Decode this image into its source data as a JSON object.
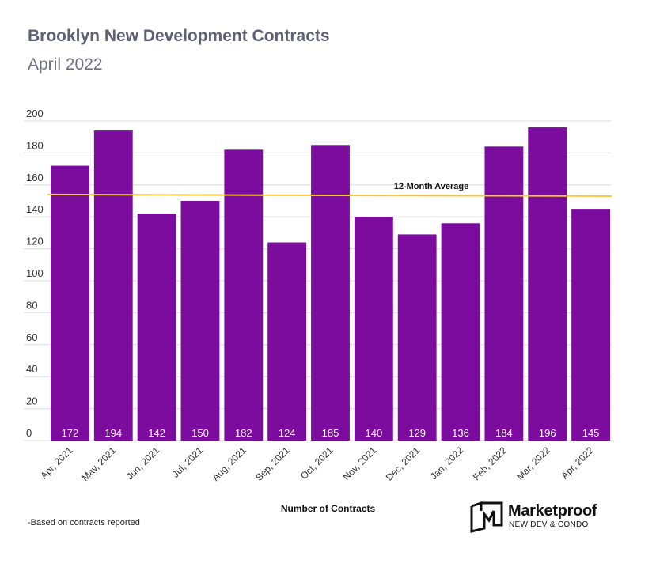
{
  "title": "Brooklyn New Development Contracts",
  "subtitle": "April 2022",
  "footnote": "-Based on contracts reported",
  "brand": {
    "name": "Marketproof",
    "tagline": "NEW DEV & CONDO",
    "logo_icon": "marketproof-logo-icon"
  },
  "chart_data": {
    "type": "bar",
    "title": "Brooklyn New Development Contracts",
    "subtitle": "April 2022",
    "xlabel": "Number of Contracts",
    "ylabel": "",
    "ylim": [
      0,
      200
    ],
    "yticks": [
      0,
      20,
      40,
      60,
      80,
      100,
      120,
      140,
      160,
      180,
      200
    ],
    "grid": true,
    "categories": [
      "Apr, 2021",
      "May, 2021",
      "Jun, 2021",
      "Jul, 2021",
      "Aug, 2021",
      "Sep, 2021",
      "Oct, 2021",
      "Nov, 2021",
      "Dec, 2021",
      "Jan, 2022",
      "Feb, 2022",
      "Mar, 2022",
      "Apr, 2022"
    ],
    "values": [
      172,
      194,
      142,
      150,
      182,
      124,
      185,
      140,
      129,
      136,
      184,
      196,
      145
    ],
    "bar_color": "#7b0c9e",
    "average_line": {
      "label": "12-Month Average",
      "start": 154,
      "end": 153,
      "color": "#f5c542"
    }
  }
}
